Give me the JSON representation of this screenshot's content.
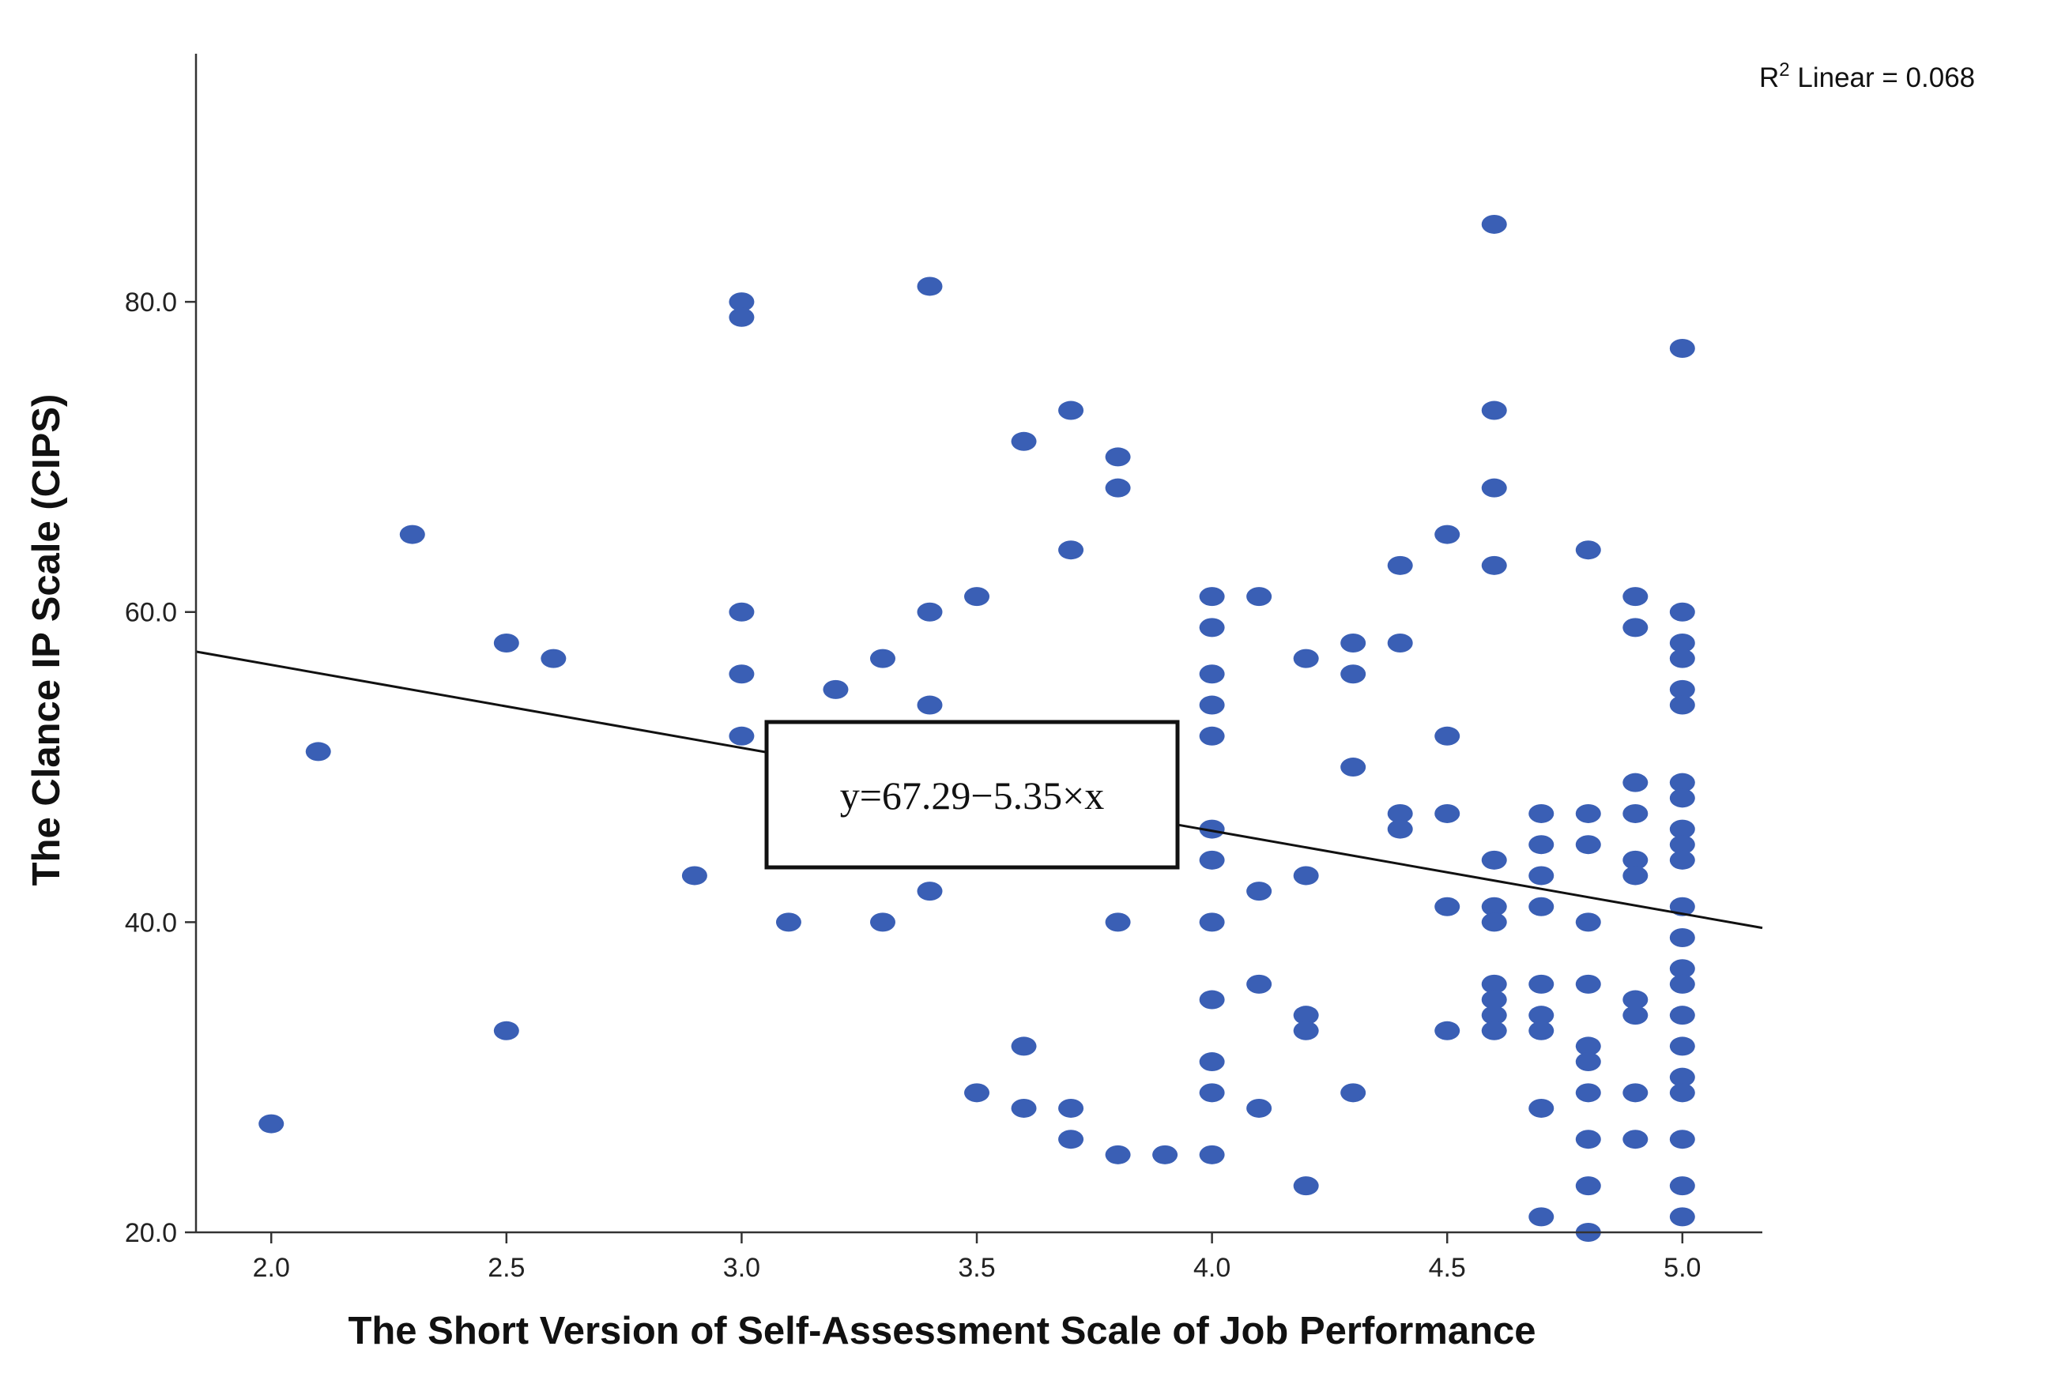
{
  "chart_data": {
    "type": "scatter",
    "xlabel": "The Short Version of Self-Assessment Scale of Job Performance",
    "ylabel": "The Clance IP Scale (CIPS)",
    "xlim": [
      1.84,
      5.17
    ],
    "ylim": [
      20,
      96
    ],
    "xticks": [
      "2.0",
      "2.5",
      "3.0",
      "3.5",
      "4.0",
      "4.5",
      "5.0"
    ],
    "xtick_values": [
      2.0,
      2.5,
      3.0,
      3.5,
      4.0,
      4.5,
      5.0
    ],
    "yticks": [
      "20.0",
      "40.0",
      "60.0",
      "80.0"
    ],
    "ytick_values": [
      20,
      40,
      60,
      80
    ],
    "grid": false,
    "point_color": "#3a5fb5",
    "fit": {
      "intercept": 67.29,
      "slope": -5.35
    },
    "annotations": {
      "r2_prefix": "R",
      "r2_sup": "2",
      "r2_rest": " Linear = 0.068",
      "equation": "y=67.29−5.35×x"
    },
    "points": [
      [
        2.0,
        27
      ],
      [
        2.1,
        51
      ],
      [
        2.3,
        65
      ],
      [
        2.5,
        58
      ],
      [
        2.5,
        33
      ],
      [
        2.6,
        57
      ],
      [
        2.9,
        43
      ],
      [
        3.0,
        80
      ],
      [
        3.0,
        79
      ],
      [
        3.0,
        60
      ],
      [
        3.0,
        56
      ],
      [
        3.0,
        52
      ],
      [
        3.1,
        40
      ],
      [
        3.2,
        55
      ],
      [
        3.3,
        57
      ],
      [
        3.3,
        40
      ],
      [
        3.4,
        81
      ],
      [
        3.4,
        60
      ],
      [
        3.4,
        54
      ],
      [
        3.4,
        42
      ],
      [
        3.5,
        61
      ],
      [
        3.5,
        29
      ],
      [
        3.6,
        71
      ],
      [
        3.6,
        32
      ],
      [
        3.6,
        28
      ],
      [
        3.7,
        73
      ],
      [
        3.7,
        64
      ],
      [
        3.7,
        28
      ],
      [
        3.7,
        26
      ],
      [
        3.8,
        70
      ],
      [
        3.8,
        68
      ],
      [
        3.8,
        40
      ],
      [
        3.8,
        25
      ],
      [
        3.9,
        25
      ],
      [
        4.0,
        61
      ],
      [
        4.0,
        59
      ],
      [
        4.0,
        56
      ],
      [
        4.0,
        54
      ],
      [
        4.0,
        52
      ],
      [
        4.0,
        46
      ],
      [
        4.0,
        44
      ],
      [
        4.0,
        40
      ],
      [
        4.0,
        35
      ],
      [
        4.0,
        31
      ],
      [
        4.0,
        29
      ],
      [
        4.0,
        25
      ],
      [
        4.1,
        61
      ],
      [
        4.1,
        42
      ],
      [
        4.1,
        36
      ],
      [
        4.1,
        28
      ],
      [
        4.2,
        57
      ],
      [
        4.2,
        43
      ],
      [
        4.2,
        34
      ],
      [
        4.2,
        33
      ],
      [
        4.2,
        23
      ],
      [
        4.3,
        58
      ],
      [
        4.3,
        56
      ],
      [
        4.3,
        50
      ],
      [
        4.3,
        29
      ],
      [
        4.4,
        63
      ],
      [
        4.4,
        58
      ],
      [
        4.4,
        47
      ],
      [
        4.4,
        46
      ],
      [
        4.5,
        65
      ],
      [
        4.5,
        52
      ],
      [
        4.5,
        47
      ],
      [
        4.5,
        41
      ],
      [
        4.5,
        33
      ],
      [
        4.6,
        85
      ],
      [
        4.6,
        73
      ],
      [
        4.6,
        68
      ],
      [
        4.6,
        63
      ],
      [
        4.6,
        44
      ],
      [
        4.6,
        41
      ],
      [
        4.6,
        40
      ],
      [
        4.6,
        36
      ],
      [
        4.6,
        35
      ],
      [
        4.6,
        34
      ],
      [
        4.6,
        33
      ],
      [
        4.7,
        47
      ],
      [
        4.7,
        45
      ],
      [
        4.7,
        43
      ],
      [
        4.7,
        41
      ],
      [
        4.7,
        36
      ],
      [
        4.7,
        34
      ],
      [
        4.7,
        33
      ],
      [
        4.7,
        28
      ],
      [
        4.7,
        21
      ],
      [
        4.8,
        64
      ],
      [
        4.8,
        47
      ],
      [
        4.8,
        45
      ],
      [
        4.8,
        40
      ],
      [
        4.8,
        36
      ],
      [
        4.8,
        32
      ],
      [
        4.8,
        31
      ],
      [
        4.8,
        29
      ],
      [
        4.8,
        26
      ],
      [
        4.8,
        23
      ],
      [
        4.8,
        20
      ],
      [
        4.9,
        61
      ],
      [
        4.9,
        59
      ],
      [
        4.9,
        49
      ],
      [
        4.9,
        47
      ],
      [
        4.9,
        44
      ],
      [
        4.9,
        43
      ],
      [
        4.9,
        35
      ],
      [
        4.9,
        34
      ],
      [
        4.9,
        29
      ],
      [
        4.9,
        26
      ],
      [
        5.0,
        77
      ],
      [
        5.0,
        60
      ],
      [
        5.0,
        58
      ],
      [
        5.0,
        57
      ],
      [
        5.0,
        55
      ],
      [
        5.0,
        54
      ],
      [
        5.0,
        49
      ],
      [
        5.0,
        48
      ],
      [
        5.0,
        46
      ],
      [
        5.0,
        45
      ],
      [
        5.0,
        44
      ],
      [
        5.0,
        41
      ],
      [
        5.0,
        39
      ],
      [
        5.0,
        37
      ],
      [
        5.0,
        36
      ],
      [
        5.0,
        34
      ],
      [
        5.0,
        32
      ],
      [
        5.0,
        30
      ],
      [
        5.0,
        29
      ],
      [
        5.0,
        26
      ],
      [
        5.0,
        23
      ],
      [
        5.0,
        21
      ]
    ]
  }
}
